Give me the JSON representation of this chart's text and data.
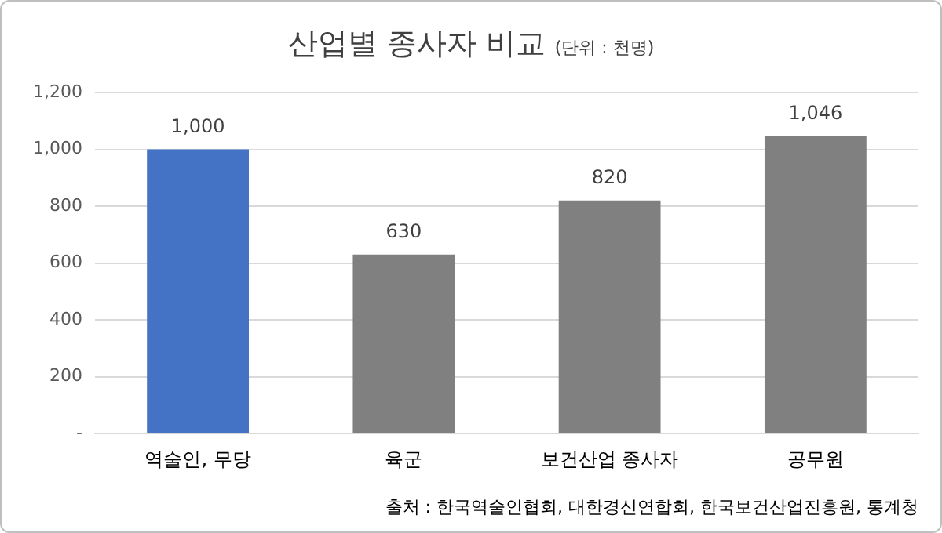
{
  "chart_data": {
    "type": "bar",
    "title": "산업별 종사자 비교",
    "subtitle": "(단위 : 천명)",
    "categories": [
      "역술인, 무당",
      "육군",
      "보건산업 종사자",
      "공무원"
    ],
    "values": [
      1000,
      630,
      820,
      1046
    ],
    "colors": [
      "#4472c4",
      "#808080",
      "#808080",
      "#808080"
    ],
    "ylim": [
      0,
      1200
    ],
    "yticks": [
      {
        "value": 0,
        "label": "-"
      },
      200,
      400,
      600,
      800,
      {
        "value": 1000,
        "label": "1,000"
      },
      {
        "value": 1200,
        "label": "1,200"
      }
    ],
    "grid": "y",
    "value_labels": [
      "1,000",
      "630",
      "820",
      "1,046"
    ],
    "annotations": [
      "출처 : 한국역술인협회, 대한경신연합회, 한국보건산업진흥원, 통계청"
    ]
  }
}
